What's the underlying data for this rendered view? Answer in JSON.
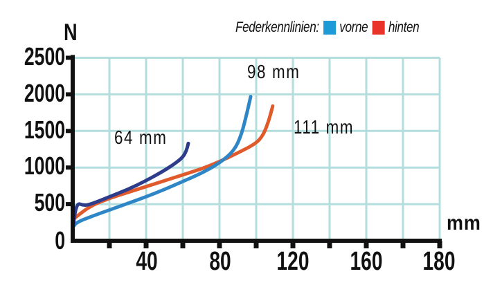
{
  "legend": {
    "prefix": "Federkennlinien:",
    "items": [
      {
        "label": "vorne",
        "color": "#1e9ad6"
      },
      {
        "label": "hinten",
        "color": "#e8322a"
      }
    ]
  },
  "axes": {
    "y_unit": "N",
    "x_unit": "mm",
    "y_ticks": [
      "2500",
      "2000",
      "1500",
      "1000",
      "500",
      "0"
    ],
    "x_ticks": [
      "40",
      "80",
      "120",
      "160",
      "180"
    ]
  },
  "annotations": {
    "short_travel": "64 mm",
    "front_travel": "98 mm",
    "rear_travel": "111 mm"
  },
  "colors": {
    "grid": "#b4dedd",
    "axis": "#111111",
    "curve_64": "#2e3c8c",
    "curve_front": "#2f86c6",
    "curve_rear": "#e05a2c"
  },
  "chart_data": {
    "type": "line",
    "title": "Federkennlinien: vorne / hinten",
    "xlabel": "mm",
    "ylabel": "N",
    "xlim": [
      0,
      200
    ],
    "ylim": [
      0,
      2500
    ],
    "x_tick_labels": [
      "40",
      "80",
      "120",
      "160",
      "180"
    ],
    "y_tick_labels": [
      "0",
      "500",
      "1000",
      "1500",
      "2000",
      "2500"
    ],
    "grid": true,
    "legend": [
      "vorne",
      "hinten"
    ],
    "legend_position": "top-right",
    "annotations": [
      "64 mm",
      "98 mm",
      "111 mm"
    ],
    "series": [
      {
        "name": "64 mm (dunkelblau)",
        "x": [
          0,
          2,
          6,
          10,
          20,
          30,
          40,
          50,
          56,
          60,
          62,
          63
        ],
        "y": [
          150,
          520,
          480,
          500,
          600,
          700,
          820,
          960,
          1060,
          1140,
          1230,
          1330
        ]
      },
      {
        "name": "vorne (98 mm)",
        "x": [
          0,
          2,
          10,
          20,
          30,
          40,
          50,
          60,
          70,
          80,
          88,
          92,
          95,
          97
        ],
        "y": [
          180,
          250,
          330,
          420,
          510,
          600,
          700,
          810,
          920,
          1060,
          1230,
          1450,
          1750,
          1970
        ]
      },
      {
        "name": "hinten (111 mm)",
        "x": [
          0,
          2,
          10,
          20,
          30,
          40,
          50,
          60,
          70,
          80,
          90,
          100,
          104,
          107,
          109
        ],
        "y": [
          280,
          330,
          480,
          580,
          660,
          740,
          820,
          900,
          980,
          1080,
          1200,
          1330,
          1450,
          1650,
          1840
        ]
      }
    ]
  }
}
